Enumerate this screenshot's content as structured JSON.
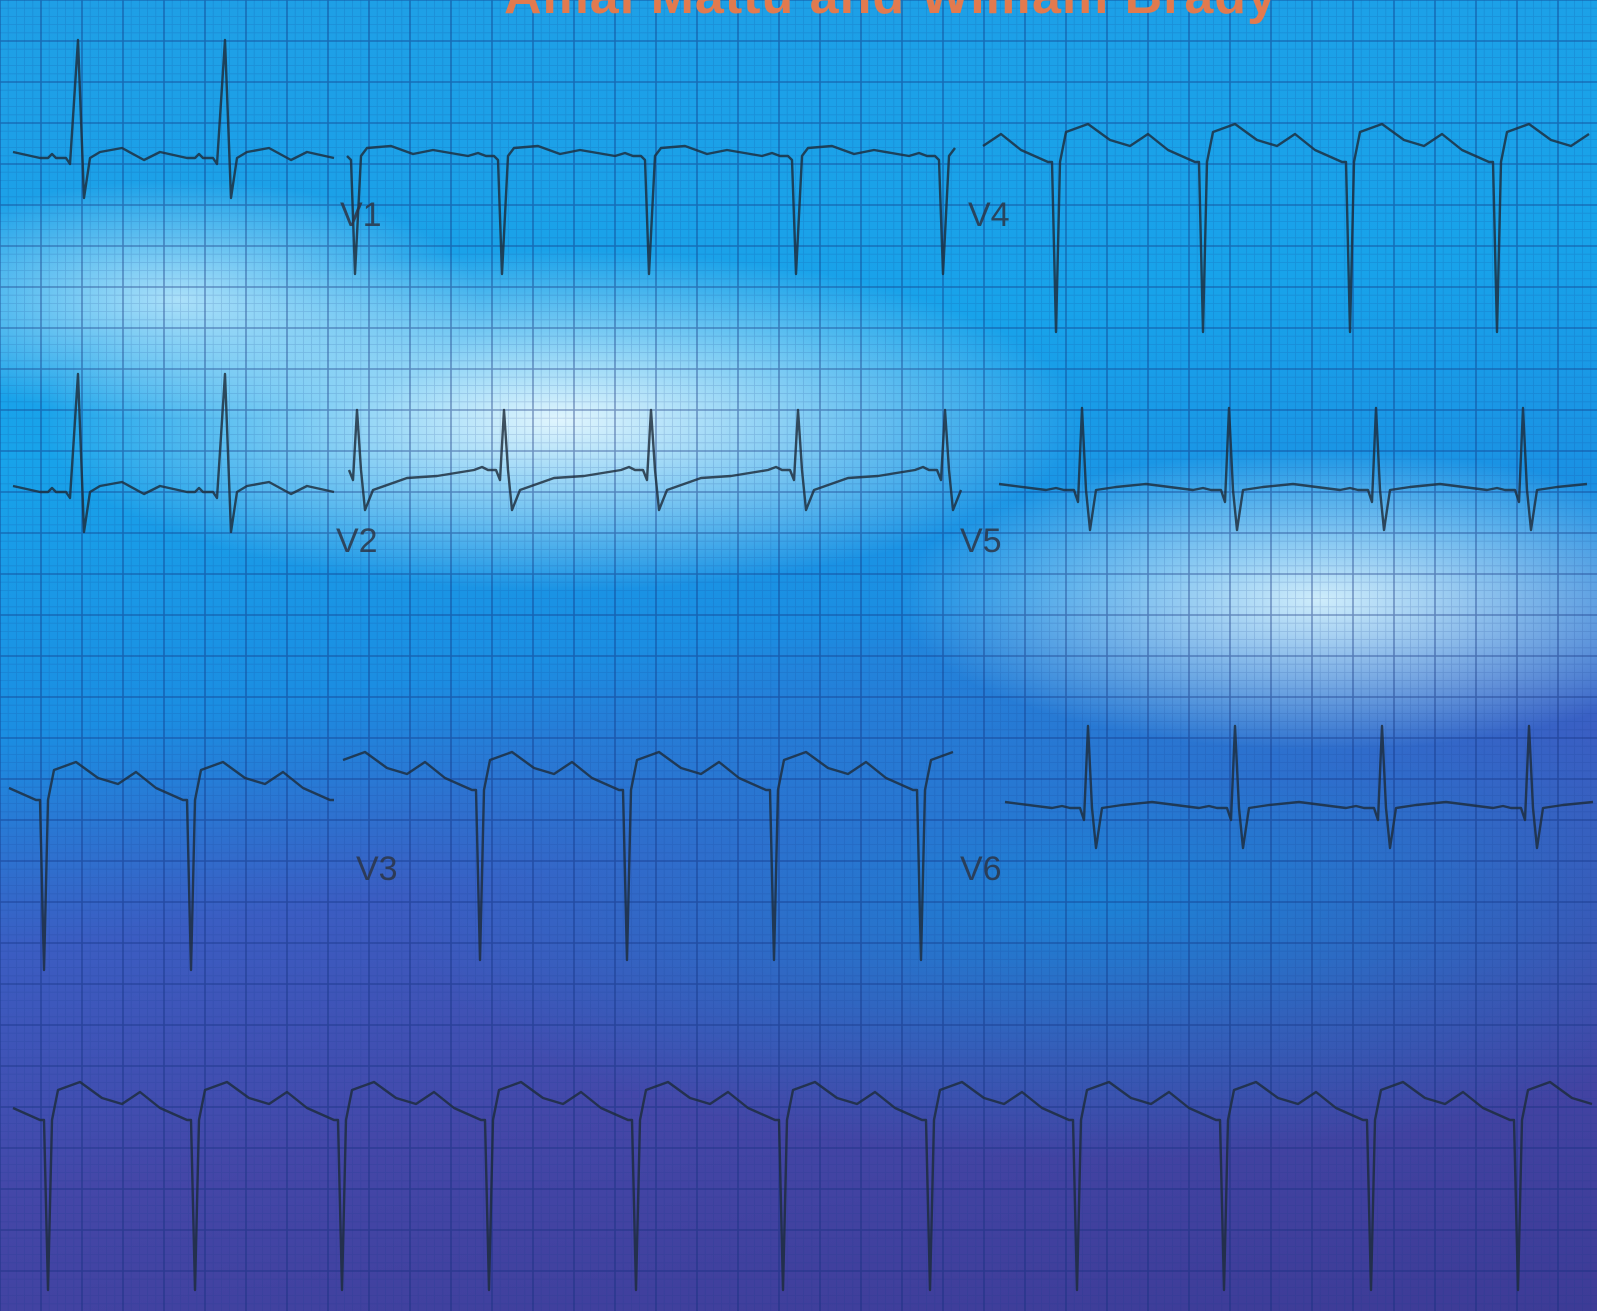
{
  "cover": {
    "authors": "Amal Mattu and William Brady",
    "lead_labels": [
      "V1",
      "V2",
      "V3",
      "V4",
      "V5",
      "V6"
    ],
    "colors": {
      "background_top": "#18a3ea",
      "background_bottom": "#3d3b96",
      "author_text": "#e27a4e",
      "trace": "#1d2c3a"
    }
  }
}
